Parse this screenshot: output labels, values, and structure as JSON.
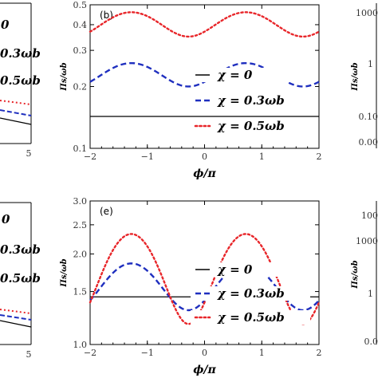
{
  "chart_data": [
    {
      "type": "line",
      "panel_label": "(b)",
      "xlabel": "ϕ/π",
      "ylabel": "Πs/ωb",
      "xlim": [
        -2,
        2
      ],
      "ylim": [
        0.1,
        0.5
      ],
      "yscale": "log",
      "xticks": [
        "−2",
        "−1",
        "0",
        "1",
        "2"
      ],
      "yticks": [
        {
          "value": 0.1,
          "label": "0.1"
        },
        {
          "value": 0.2,
          "label": "0.2"
        },
        {
          "value": 0.3,
          "label": "0.3"
        },
        {
          "value": 0.4,
          "label": "0.4"
        },
        {
          "value": 0.5,
          "label": "0.5"
        }
      ],
      "legend_placement": "lower-right",
      "series": [
        {
          "name": "χ = 0",
          "color": "#000000",
          "style": "solid",
          "mean": 0.143,
          "amp": 0.0,
          "peak_phase": 0.0
        },
        {
          "name": "χ = 0.3ωb",
          "color": "#1f2fbf",
          "style": "dashed",
          "mean": 0.23,
          "amp": 0.03,
          "peak_phase": 0.72
        },
        {
          "name": "χ = 0.5ωb",
          "color": "#e8262a",
          "style": "dotted",
          "mean": 0.405,
          "amp": 0.055,
          "peak_phase": 0.72
        }
      ]
    },
    {
      "type": "line",
      "panel_label": "(e)",
      "xlabel": "ϕ/π",
      "ylabel": "Πs/ωb",
      "xlim": [
        -2,
        2
      ],
      "ylim": [
        1.0,
        3.0
      ],
      "yscale": "log",
      "xticks": [
        "−2",
        "−1",
        "0",
        "1",
        "2"
      ],
      "yticks": [
        {
          "value": 1.0,
          "label": "1.0"
        },
        {
          "value": 1.5,
          "label": "1.5"
        },
        {
          "value": 2.0,
          "label": "2.0"
        },
        {
          "value": 2.5,
          "label": "2.5"
        },
        {
          "value": 3.0,
          "label": "3.0"
        }
      ],
      "legend_placement": "lower-right",
      "series": [
        {
          "name": "χ = 0",
          "color": "#000000",
          "style": "solid",
          "mean": 1.44,
          "amp": 0.0,
          "peak_phase": 0.0
        },
        {
          "name": "χ = 0.3ωb",
          "color": "#1f2fbf",
          "style": "dashed",
          "mean": 1.58,
          "amp": 0.28,
          "peak_phase": 0.72
        },
        {
          "name": "χ = 0.5ωb",
          "color": "#e8262a",
          "style": "dotted",
          "mean": 1.75,
          "amp": 0.58,
          "peak_phase": 0.72
        }
      ]
    }
  ],
  "left_fragments": {
    "top": {
      "legend": [
        "0",
        "0.3ωb",
        "0.5ωb"
      ],
      "xtick": "5"
    },
    "bottom": {
      "legend": [
        "0",
        "0.3ωb",
        "0.5ωb"
      ],
      "xtick": "5"
    }
  },
  "right_fragments": {
    "top": {
      "yticks": [
        "1000",
        "1",
        "0.10",
        "0.00"
      ],
      "ylabel": "Πs/ωb"
    },
    "bottom": {
      "yticks": [
        "100",
        "1000",
        "1",
        "0.0"
      ],
      "ylabel": "Πs/ωb"
    }
  }
}
